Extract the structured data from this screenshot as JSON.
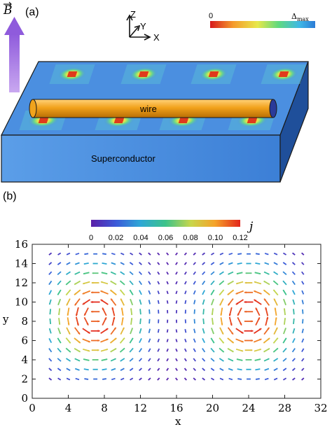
{
  "panel_a": {
    "label": "(a)",
    "field_symbol": "B",
    "axes_labels": {
      "z": "Z",
      "y": "Y",
      "x": "X"
    },
    "colorbar": {
      "min_label": "0",
      "max_label": "Δ",
      "max_subscript": "max",
      "colors": [
        "#d7191c",
        "#f59b2c",
        "#e8e84a",
        "#5fd97e",
        "#3fb8e6",
        "#2c7bd6"
      ]
    },
    "wire_label": "wire",
    "slab_label": "Superconductor",
    "vortex_rows": 2,
    "vortex_cols": 4,
    "colors": {
      "slab_top": "#4b8fe0",
      "slab_side": "#3d7fd8",
      "wire": "#f0a31c",
      "arrow": "#a678e0"
    }
  },
  "panel_b": {
    "label": "(b)",
    "colorbar_symbol": "j",
    "chart_data": {
      "type": "vector-field",
      "xlabel": "x",
      "ylabel": "y",
      "xlim": [
        0,
        32
      ],
      "ylim": [
        0,
        16
      ],
      "xticks": [
        0,
        4,
        8,
        12,
        16,
        20,
        24,
        28,
        32
      ],
      "yticks": [
        0,
        2,
        4,
        6,
        8,
        10,
        12,
        14,
        16
      ],
      "grid": {
        "x_start": 2,
        "x_end": 30,
        "y_start": 2,
        "y_end": 15,
        "step": 1
      },
      "vortex_centers": [
        [
          7,
          8.5
        ],
        [
          24,
          8.5
        ]
      ],
      "colorbar": {
        "ticks": [
          "0",
          "0.02",
          "0.04",
          "0.06",
          "0.08",
          "0.10",
          "0.12"
        ],
        "range": [
          0,
          0.12
        ],
        "colors": [
          "#5b1fa8",
          "#3b5bd9",
          "#2ea7d6",
          "#3cc38a",
          "#c8d64b",
          "#f5a32a",
          "#e3261c"
        ]
      }
    }
  }
}
